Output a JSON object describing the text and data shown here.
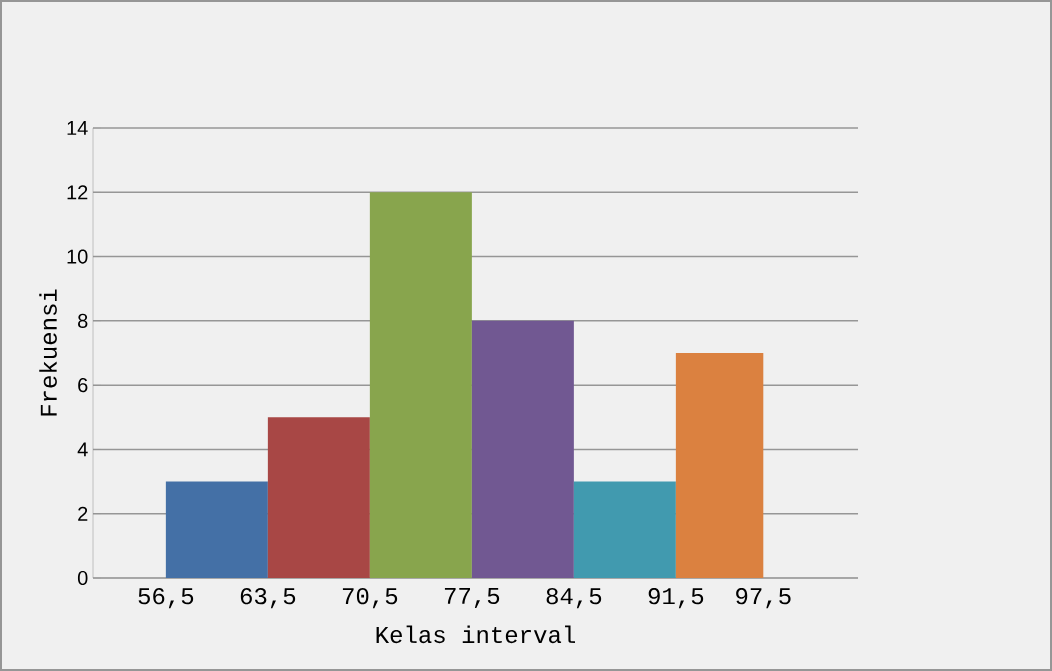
{
  "chart_data": {
    "type": "histogram",
    "xlabel": "Kelas interval",
    "ylabel": "Frekuensi",
    "bins": [
      56.5,
      63.5,
      70.5,
      77.5,
      84.5,
      91.5,
      97.5
    ],
    "values": [
      3,
      5,
      12,
      8,
      3,
      7
    ],
    "colors": [
      "#4470a6",
      "#a84745",
      "#88a54d",
      "#715892",
      "#419aaf",
      "#db8140"
    ],
    "xlim": [
      51.5,
      104
    ],
    "xticks": [
      {
        "value": 56.5,
        "label": "56,5"
      },
      {
        "value": 63.5,
        "label": "63,5"
      },
      {
        "value": 70.5,
        "label": "70,5"
      },
      {
        "value": 77.5,
        "label": "77,5"
      },
      {
        "value": 84.5,
        "label": "84,5"
      },
      {
        "value": 91.5,
        "label": "91,5"
      },
      {
        "value": 97.5,
        "label": "97,5"
      }
    ],
    "ylim": [
      0,
      14
    ],
    "yticks": [
      0,
      2,
      4,
      6,
      8,
      10,
      12,
      14
    ],
    "grid": "y"
  }
}
